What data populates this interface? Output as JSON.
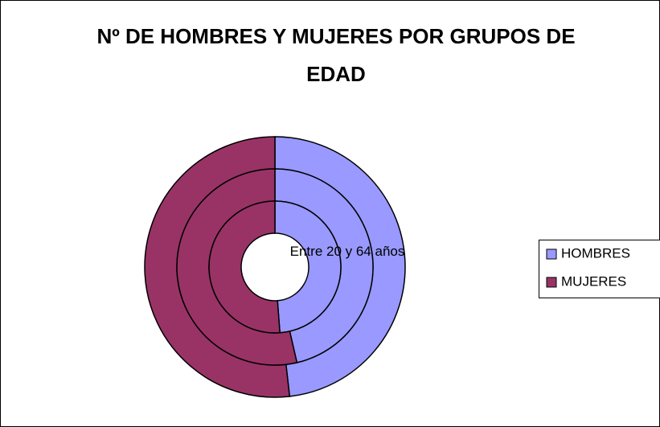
{
  "chart_data": {
    "type": "doughnut",
    "title": "Nº DE HOMBRES Y MUJERES POR GRUPOS DE EDAD",
    "annotation": "Entre 20 y 64 años",
    "categories": [
      "HOMBRES",
      "MUJERES"
    ],
    "colors": [
      "#9999ff",
      "#993366"
    ],
    "rings": [
      {
        "values": [
          48.2,
          51.8
        ]
      },
      {
        "values": [
          46.4,
          53.6
        ]
      },
      {
        "values": [
          48.8,
          51.2
        ]
      }
    ],
    "legend": "right"
  }
}
